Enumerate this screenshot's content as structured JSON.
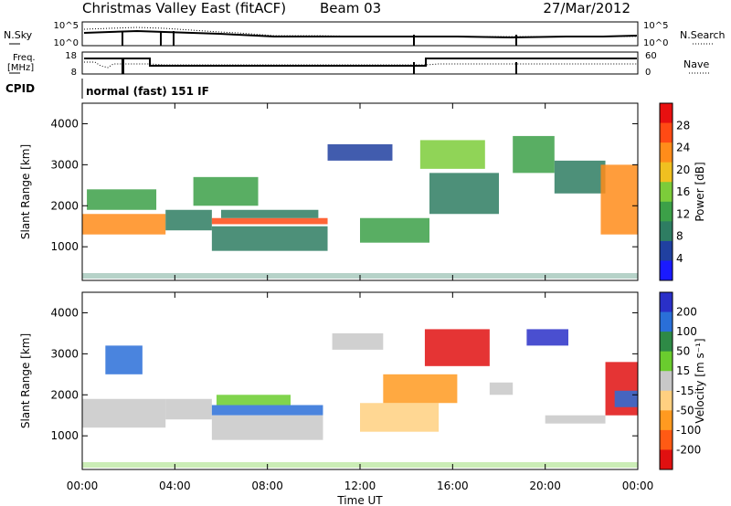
{
  "header": {
    "title": "Christmas Valley East (fitACF)",
    "beam": "Beam 03",
    "date": "27/Mar/2012"
  },
  "strip1": {
    "left_label": "N.Sky",
    "right_label": "N.Search",
    "left_ticks": [
      "10^5",
      "10^0"
    ],
    "right_ticks": [
      "10^5",
      "10^0"
    ]
  },
  "strip2": {
    "left_label_1": "Freq.",
    "left_label_2": "[MHz]",
    "right_label": "Nave",
    "left_ticks": [
      "18",
      "8"
    ],
    "right_ticks": [
      "60",
      "0"
    ]
  },
  "cpid": {
    "label": "CPID",
    "mode": "normal (fast) 151 IF"
  },
  "colors": {
    "power_scale": [
      "#1a1aff",
      "#2040a0",
      "#2e7d62",
      "#3ca048",
      "#7ccc3a",
      "#f0c020",
      "#ff8c1a",
      "#ff4a14",
      "#e81010"
    ],
    "velocity_scale": [
      "#2a30c8",
      "#2a6fd8",
      "#2e8a46",
      "#6acc2e",
      "#c8c8c8",
      "#ffd080",
      "#ff9a20",
      "#ff5a14",
      "#e01010"
    ]
  },
  "chart_data": [
    {
      "type": "heatmap",
      "name": "power",
      "xlabel": "",
      "ylabel": "Slant Range [km]",
      "xlim": [
        "00:00",
        "24:00"
      ],
      "ylim": [
        180,
        4500
      ],
      "yticks": [
        "1000",
        "2000",
        "3000",
        "4000"
      ],
      "colorbar": {
        "label": "Power [dB]",
        "ticks": [
          "28",
          "24",
          "20",
          "16",
          "12",
          "8",
          "4"
        ],
        "range": [
          0,
          30
        ]
      },
      "echo_regions": [
        {
          "t0": 0.0,
          "t1": 3.6,
          "r0": 1300,
          "r1": 1800,
          "value": 22
        },
        {
          "t0": 0.2,
          "t1": 3.2,
          "r0": 1900,
          "r1": 2400,
          "value": 12
        },
        {
          "t0": 3.6,
          "t1": 5.6,
          "r0": 1400,
          "r1": 1900,
          "value": 8
        },
        {
          "t0": 4.8,
          "t1": 7.6,
          "r0": 2000,
          "r1": 2700,
          "value": 10
        },
        {
          "t0": 5.6,
          "t1": 10.6,
          "r0": 1550,
          "r1": 1700,
          "value": 24
        },
        {
          "t0": 5.6,
          "t1": 10.6,
          "r0": 900,
          "r1": 1500,
          "value": 9
        },
        {
          "t0": 6.0,
          "t1": 10.2,
          "r0": 1700,
          "r1": 1900,
          "value": 8
        },
        {
          "t0": 10.6,
          "t1": 13.4,
          "r0": 3100,
          "r1": 3500,
          "value": 6
        },
        {
          "t0": 12.0,
          "t1": 15.0,
          "r0": 1100,
          "r1": 1700,
          "value": 11
        },
        {
          "t0": 14.6,
          "t1": 17.4,
          "r0": 2900,
          "r1": 3600,
          "value": 14
        },
        {
          "t0": 15.0,
          "t1": 18.0,
          "r0": 1800,
          "r1": 2800,
          "value": 7
        },
        {
          "t0": 18.6,
          "t1": 20.4,
          "r0": 2800,
          "r1": 3700,
          "value": 12
        },
        {
          "t0": 20.4,
          "t1": 22.6,
          "r0": 2300,
          "r1": 3100,
          "value": 7
        },
        {
          "t0": 22.4,
          "t1": 24.0,
          "r0": 1300,
          "r1": 3000,
          "value": 22
        }
      ]
    },
    {
      "type": "heatmap",
      "name": "velocity",
      "xlabel": "Time UT",
      "ylabel": "Slant Range [km]",
      "xlim": [
        "00:00",
        "24:00"
      ],
      "ylim": [
        180,
        4500
      ],
      "xticks": [
        "00:00",
        "04:00",
        "08:00",
        "12:00",
        "16:00",
        "20:00",
        "00:00"
      ],
      "yticks": [
        "1000",
        "2000",
        "3000",
        "4000"
      ],
      "colorbar": {
        "label": "Velocity [m s⁻¹]",
        "ticks": [
          "200",
          "100",
          "50",
          "15",
          "-15",
          "-50",
          "-100",
          "-200"
        ],
        "range": [
          -250,
          250
        ]
      },
      "echo_regions": [
        {
          "t0": 0.0,
          "t1": 3.6,
          "r0": 1200,
          "r1": 1900,
          "value": 0
        },
        {
          "t0": 1.0,
          "t1": 2.6,
          "r0": 2500,
          "r1": 3200,
          "value": 150
        },
        {
          "t0": 3.6,
          "t1": 5.6,
          "r0": 1400,
          "r1": 1900,
          "value": 0
        },
        {
          "t0": 5.6,
          "t1": 10.4,
          "r0": 1500,
          "r1": 1750,
          "value": 180
        },
        {
          "t0": 5.6,
          "t1": 10.4,
          "r0": 900,
          "r1": 1500,
          "value": 0
        },
        {
          "t0": 5.8,
          "t1": 9.0,
          "r0": 1750,
          "r1": 2000,
          "value": 60
        },
        {
          "t0": 10.8,
          "t1": 13.0,
          "r0": 3100,
          "r1": 3500,
          "value": 0
        },
        {
          "t0": 12.0,
          "t1": 15.4,
          "r0": 1100,
          "r1": 1800,
          "value": -80
        },
        {
          "t0": 13.0,
          "t1": 16.2,
          "r0": 1800,
          "r1": 2500,
          "value": -130
        },
        {
          "t0": 14.8,
          "t1": 17.6,
          "r0": 2700,
          "r1": 3600,
          "value": -220
        },
        {
          "t0": 17.6,
          "t1": 18.6,
          "r0": 2000,
          "r1": 2300,
          "value": 0
        },
        {
          "t0": 19.2,
          "t1": 21.0,
          "r0": 3200,
          "r1": 3600,
          "value": 200
        },
        {
          "t0": 20.0,
          "t1": 22.6,
          "r0": 1300,
          "r1": 1500,
          "value": 0
        },
        {
          "t0": 22.6,
          "t1": 24.0,
          "r0": 1500,
          "r1": 2800,
          "value": -200
        },
        {
          "t0": 23.0,
          "t1": 24.0,
          "r0": 1700,
          "r1": 2100,
          "value": 180
        }
      ]
    }
  ]
}
